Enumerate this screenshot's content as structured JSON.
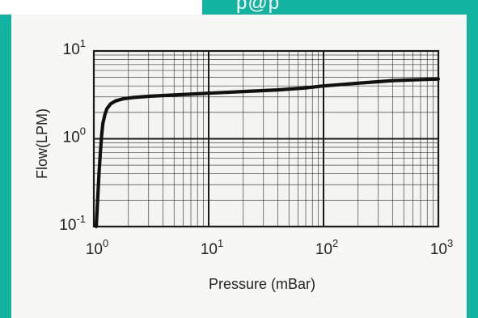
{
  "header": {
    "cropped_text": "p@p"
  },
  "colors": {
    "frame": "#12b3a0",
    "panel": "#f7f7f5",
    "grid": "#1a1a1a",
    "curve": "#111111"
  },
  "chart_data": {
    "type": "line",
    "title": "",
    "xlabel": "Pressure (mBar)",
    "ylabel": "Flow(LPM)",
    "xscale": "log",
    "yscale": "log",
    "xlim": [
      1,
      1000
    ],
    "ylim": [
      0.1,
      10
    ],
    "grid": true,
    "legend": "none",
    "x_ticks": [
      {
        "base": "10",
        "exp": "0"
      },
      {
        "base": "10",
        "exp": "1"
      },
      {
        "base": "10",
        "exp": "2"
      },
      {
        "base": "10",
        "exp": "3"
      }
    ],
    "y_ticks": [
      {
        "base": "10",
        "exp": "-1"
      },
      {
        "base": "10",
        "exp": "0"
      },
      {
        "base": "10",
        "exp": "1"
      }
    ],
    "series": [
      {
        "x": [
          1.05,
          1.08,
          1.11,
          1.14,
          1.17,
          1.2,
          1.25,
          1.3,
          1.4,
          1.55,
          1.8,
          2.2,
          3,
          5,
          10,
          20,
          40,
          70,
          100,
          200,
          400,
          1000
        ],
        "y": [
          0.1,
          0.2,
          0.4,
          0.7,
          1.1,
          1.5,
          1.9,
          2.2,
          2.5,
          2.7,
          2.85,
          2.95,
          3.05,
          3.15,
          3.3,
          3.45,
          3.6,
          3.8,
          4.0,
          4.3,
          4.6,
          4.8
        ]
      }
    ]
  }
}
